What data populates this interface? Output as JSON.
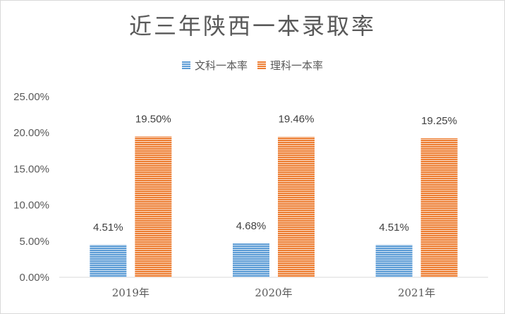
{
  "chart_data": {
    "type": "bar",
    "title": "近三年陕西一本录取率",
    "categories": [
      "2019年",
      "2020年",
      "2021年"
    ],
    "series": [
      {
        "name": "文科一本率",
        "values": [
          4.51,
          4.68,
          4.51
        ],
        "labels": [
          "4.51%",
          "4.68%",
          "4.51%"
        ],
        "color": "#5b9bd5"
      },
      {
        "name": "理科一本率",
        "values": [
          19.5,
          19.46,
          19.25
        ],
        "labels": [
          "19.50%",
          "19.46%",
          "19.25%"
        ],
        "color": "#ed7d31"
      }
    ],
    "yticks": [
      "0.00%",
      "5.00%",
      "10.00%",
      "15.00%",
      "20.00%",
      "25.00%"
    ],
    "ylim": [
      0,
      25
    ],
    "grid": false,
    "legend": "top-center",
    "xlabel": "",
    "ylabel": ""
  }
}
